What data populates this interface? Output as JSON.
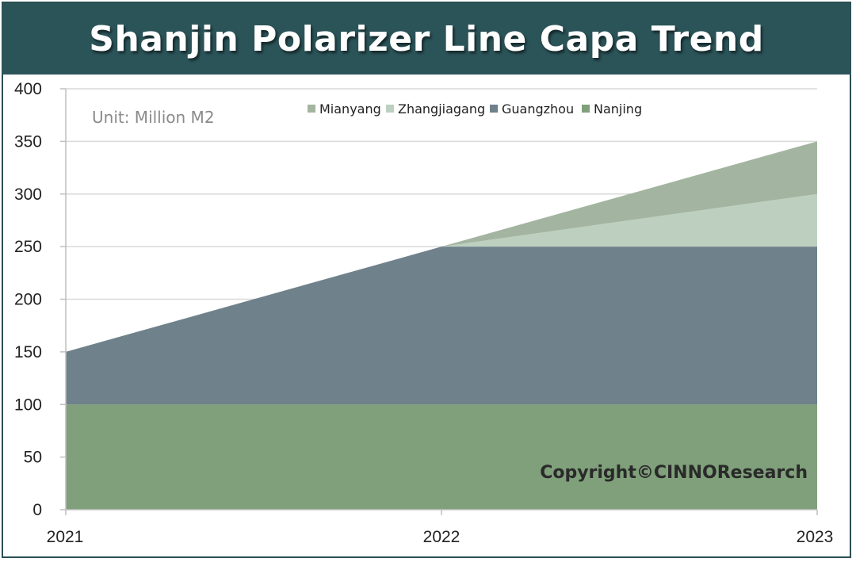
{
  "title": "Shanjin Polarizer Line Capa Trend",
  "unit_note": "Unit: Million M2",
  "copyright": "Copyright©CINNOResearch",
  "colors": {
    "title_bg": "#2b5459",
    "nanjing": "#7fa07a",
    "guangzhou": "#6f818b",
    "zhangjiagang": "#bdd0c0",
    "mianyang": "#a3b5a0",
    "grid": "#d9d9d9"
  },
  "chart_data": {
    "type": "area",
    "stacked": true,
    "x": [
      "2021",
      "2022",
      "2023"
    ],
    "ylim": [
      0,
      400
    ],
    "yticks": [
      0,
      50,
      100,
      150,
      200,
      250,
      300,
      350,
      400
    ],
    "grid": true,
    "legend_position": "top",
    "series": [
      {
        "name": "Nanjing",
        "values": [
          100,
          100,
          100
        ],
        "color": "#7fa07a"
      },
      {
        "name": "Guangzhou",
        "values": [
          50,
          150,
          150
        ],
        "color": "#6f818b"
      },
      {
        "name": "Zhangjiagang",
        "values": [
          0,
          0,
          50
        ],
        "color": "#bdd0c0"
      },
      {
        "name": "Mianyang",
        "values": [
          0,
          0,
          50
        ],
        "color": "#a3b5a0"
      }
    ],
    "legend_order": [
      "Mianyang",
      "Zhangjiagang",
      "Guangzhou",
      "Nanjing"
    ]
  }
}
